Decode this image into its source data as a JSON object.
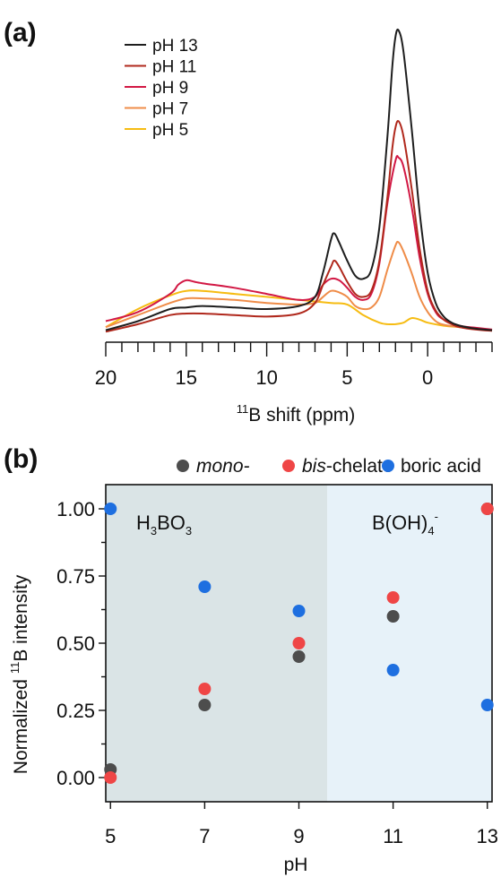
{
  "panel_a": {
    "label": "(a)",
    "xlabel_sup": "11",
    "xlabel": "B shift (ppm)"
  },
  "panel_b": {
    "label": "(b)",
    "ylabel": "Normalized ",
    "ylabel_sup": "11",
    "ylabel_end": "B intensity",
    "xlabel": "pH",
    "region_left": {
      "main": "H",
      "sub1": "3",
      "mid": "BO",
      "sub2": "3"
    },
    "region_right": {
      "main": "B(OH)",
      "sub": "4",
      "sup": "-"
    },
    "legend": {
      "mono_italic": "mono-",
      "bis_italic": "bis",
      "bis_rest": "-chelate",
      "boric": "boric acid"
    }
  },
  "colors": {
    "pH13": "#1e1e1e",
    "pH11": "#b0281c",
    "pH9": "#d21844",
    "pH7": "#ef8c48",
    "pH5": "#f6bc12",
    "mono": "#4d4d4d",
    "bis": "#ef4646",
    "boric": "#1e6fe0",
    "region_acid": "#dae4e6",
    "region_base": "#e7f2f9"
  },
  "chart_data": [
    {
      "type": "line",
      "xlim": [
        20,
        -4
      ],
      "x_reversed": true,
      "xticks": [
        20,
        15,
        10,
        5,
        0
      ],
      "xlabel": "11B shift (ppm)",
      "legend_position": "top-left",
      "series": [
        {
          "name": "pH 13",
          "color_key": "pH13",
          "x": [
            20,
            18,
            16,
            15,
            14,
            12,
            10,
            8,
            7,
            6.5,
            6,
            5.8,
            5.5,
            5,
            4.5,
            4,
            3.5,
            3,
            2.5,
            2.2,
            2,
            1.8,
            1.5,
            1,
            0.5,
            0,
            -0.5,
            -1,
            -1.5,
            -2,
            -3,
            -4
          ],
          "y": [
            0.01,
            0.04,
            0.08,
            0.085,
            0.09,
            0.085,
            0.08,
            0.09,
            0.12,
            0.2,
            0.31,
            0.33,
            0.3,
            0.24,
            0.19,
            0.18,
            0.21,
            0.35,
            0.65,
            0.88,
            0.98,
            1.0,
            0.93,
            0.68,
            0.4,
            0.2,
            0.1,
            0.055,
            0.035,
            0.025,
            0.015,
            0.01
          ]
        },
        {
          "name": "pH 11",
          "color_key": "pH11",
          "x": [
            20,
            18,
            16,
            15,
            14,
            12,
            10,
            8,
            7,
            6.5,
            6,
            5.8,
            5.5,
            5,
            4.5,
            4,
            3.5,
            3,
            2.5,
            2.2,
            2,
            1.8,
            1.5,
            1,
            0.5,
            0,
            -0.5,
            -1,
            -1.5,
            -2,
            -3,
            -4
          ],
          "y": [
            0.005,
            0.03,
            0.06,
            0.065,
            0.065,
            0.06,
            0.055,
            0.065,
            0.1,
            0.16,
            0.22,
            0.24,
            0.22,
            0.17,
            0.13,
            0.12,
            0.14,
            0.24,
            0.45,
            0.61,
            0.68,
            0.7,
            0.65,
            0.48,
            0.28,
            0.14,
            0.075,
            0.045,
            0.03,
            0.02,
            0.012,
            0.008
          ]
        },
        {
          "name": "pH 9",
          "color_key": "pH9",
          "x": [
            20,
            18,
            16,
            15.5,
            15,
            14.5,
            14,
            12,
            10,
            8,
            7,
            6.5,
            6,
            5.5,
            5,
            4.5,
            4,
            3.5,
            3,
            2.5,
            2,
            1.8,
            1.5,
            1,
            0.5,
            0,
            -0.5,
            -1,
            -2,
            -3,
            -4
          ],
          "y": [
            0.04,
            0.07,
            0.13,
            0.16,
            0.175,
            0.17,
            0.165,
            0.15,
            0.13,
            0.11,
            0.12,
            0.16,
            0.18,
            0.175,
            0.15,
            0.12,
            0.11,
            0.13,
            0.23,
            0.43,
            0.57,
            0.58,
            0.55,
            0.42,
            0.25,
            0.13,
            0.07,
            0.045,
            0.025,
            0.018,
            0.012
          ]
        },
        {
          "name": "pH 7",
          "color_key": "pH7",
          "x": [
            20,
            18,
            16,
            15,
            14,
            12,
            10,
            8,
            7,
            6.5,
            6,
            5.5,
            5,
            4.5,
            4,
            3.5,
            3,
            2.5,
            2,
            1.8,
            1.5,
            1,
            0.5,
            0,
            -0.5,
            -1,
            -2,
            -3,
            -4
          ],
          "y": [
            0.02,
            0.06,
            0.1,
            0.115,
            0.115,
            0.11,
            0.1,
            0.095,
            0.1,
            0.12,
            0.14,
            0.135,
            0.12,
            0.09,
            0.08,
            0.085,
            0.12,
            0.21,
            0.29,
            0.3,
            0.27,
            0.2,
            0.12,
            0.07,
            0.04,
            0.028,
            0.02,
            0.015,
            0.01
          ]
        },
        {
          "name": "pH 5",
          "color_key": "pH5",
          "x": [
            20,
            18,
            16,
            15,
            14,
            12,
            10,
            8,
            6,
            5,
            4,
            3,
            2.5,
            2,
            1.5,
            1,
            0.5,
            0,
            -1,
            -2,
            -3,
            -4
          ],
          "y": [
            0.02,
            0.08,
            0.125,
            0.14,
            0.14,
            0.13,
            0.12,
            0.11,
            0.1,
            0.095,
            0.06,
            0.035,
            0.03,
            0.03,
            0.035,
            0.05,
            0.045,
            0.035,
            0.025,
            0.02,
            0.015,
            0.01
          ]
        }
      ]
    },
    {
      "type": "scatter",
      "xlim": [
        4.9,
        13.1
      ],
      "ylim": [
        -0.09,
        1.09
      ],
      "xticks": [
        5,
        7,
        9,
        11,
        13
      ],
      "yticks": [
        0.0,
        0.25,
        0.5,
        0.75,
        1.0
      ],
      "ytick_labels": [
        "0.00",
        "0.25",
        "0.50",
        "0.75",
        "1.00"
      ],
      "xlabel": "pH",
      "ylabel": "Normalized 11B intensity",
      "region_boundary_pH": 9.6,
      "series": [
        {
          "name": "mono-",
          "color_key": "mono",
          "x": [
            5,
            7,
            9,
            11,
            13
          ],
          "y": [
            0.03,
            0.27,
            0.45,
            0.6,
            1.0
          ]
        },
        {
          "name": "bis-chelate",
          "color_key": "bis",
          "x": [
            5,
            7,
            9,
            11,
            13
          ],
          "y": [
            0.0,
            0.33,
            0.5,
            0.67,
            1.0
          ]
        },
        {
          "name": "boric acid",
          "color_key": "boric",
          "x": [
            5,
            7,
            9,
            11,
            13
          ],
          "y": [
            1.0,
            0.71,
            0.62,
            0.4,
            0.27
          ]
        }
      ]
    }
  ]
}
